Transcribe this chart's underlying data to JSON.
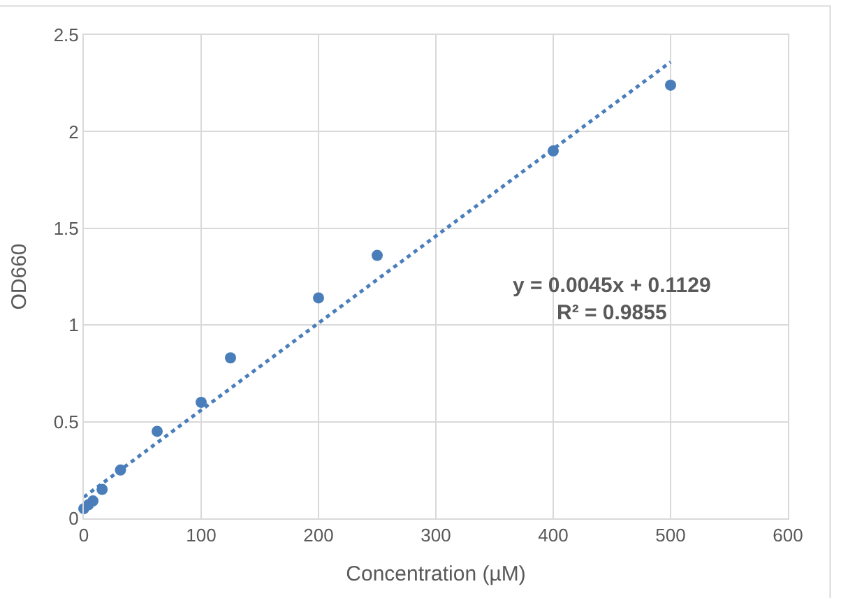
{
  "chart_data": {
    "type": "scatter",
    "xlabel": "Concentration (µM)",
    "ylabel": "OD660",
    "xlim": [
      0,
      600
    ],
    "xticks": [
      0,
      100,
      200,
      300,
      400,
      500,
      600
    ],
    "ylim": [
      0,
      2.5
    ],
    "yticks": [
      0,
      0.5,
      1,
      1.5,
      2,
      2.5
    ],
    "grid": true,
    "legend": false,
    "marker": "circle",
    "series": [
      {
        "color": "#4a7ebb",
        "x": [
          0,
          3.9,
          7.8,
          15.6,
          31.25,
          62.5,
          100,
          125,
          200,
          250,
          400,
          500
        ],
        "values": [
          0.05,
          0.07,
          0.09,
          0.15,
          0.25,
          0.45,
          0.6,
          0.83,
          1.14,
          1.36,
          1.9,
          2.24
        ]
      },
      {
        "type": "line",
        "color": "#4a7ebb",
        "line_style": "dotted",
        "marker": "none",
        "x": [
          0,
          500
        ],
        "values": [
          0.11,
          2.36
        ]
      }
    ],
    "annotations": [
      "y = 0.0045x + 0.1129\nR² = 0.9855"
    ]
  }
}
